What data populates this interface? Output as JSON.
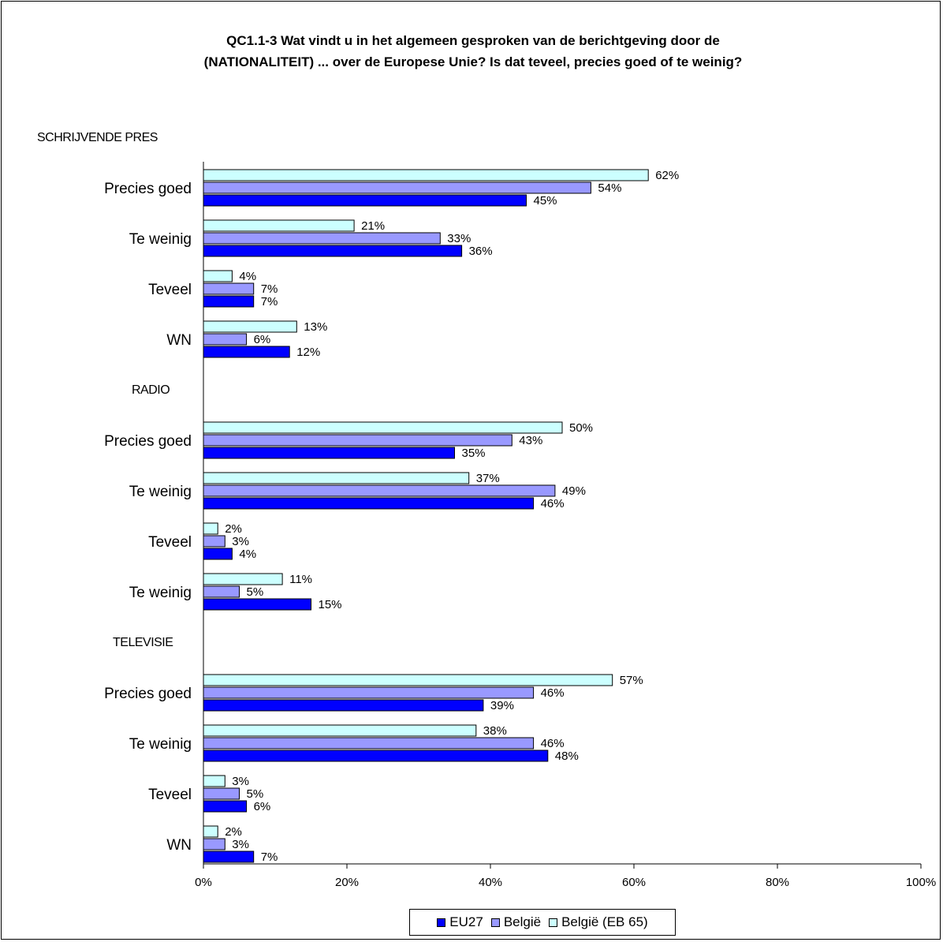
{
  "chart_data": {
    "type": "bar",
    "orientation": "horizontal",
    "title_lines": [
      "QC1.1-3 Wat vindt u in het algemeen gesproken van de berichtgeving door de",
      "(NATIONALITEIT) ... over de Europese Unie? Is dat teveel, precies goed of te weinig?"
    ],
    "xlim": [
      0,
      100
    ],
    "x_ticks": [
      0,
      20,
      40,
      60,
      80,
      100
    ],
    "x_tick_labels": [
      "0%",
      "20%",
      "40%",
      "60%",
      "80%",
      "100%"
    ],
    "legend_position": "bottom-center",
    "series": [
      {
        "name": "EU27",
        "color": "#0000ff"
      },
      {
        "name": "België",
        "color": "#9999ff"
      },
      {
        "name": "België (EB 65)",
        "color": "#ccffff"
      }
    ],
    "groups": [
      {
        "label": "SCHRIJVENDE PRES",
        "categories": [
          {
            "label": "Precies goed",
            "values": [
              45,
              54,
              62
            ]
          },
          {
            "label": "Te weinig",
            "values": [
              36,
              33,
              21
            ]
          },
          {
            "label": "Teveel",
            "values": [
              7,
              7,
              4
            ]
          },
          {
            "label": "WN",
            "values": [
              12,
              6,
              13
            ]
          }
        ]
      },
      {
        "label": "RADIO",
        "categories": [
          {
            "label": "Precies goed",
            "values": [
              35,
              43,
              50
            ]
          },
          {
            "label": "Te weinig",
            "values": [
              46,
              49,
              37
            ]
          },
          {
            "label": "Teveel",
            "values": [
              4,
              3,
              2
            ]
          },
          {
            "label": "Te weinig",
            "values": [
              15,
              5,
              11
            ]
          }
        ]
      },
      {
        "label": "TELEVISIE",
        "categories": [
          {
            "label": "Precies goed",
            "values": [
              39,
              46,
              57
            ]
          },
          {
            "label": "Te weinig",
            "values": [
              48,
              46,
              38
            ]
          },
          {
            "label": "Teveel",
            "values": [
              6,
              5,
              3
            ]
          },
          {
            "label": "WN",
            "values": [
              7,
              3,
              2
            ]
          }
        ]
      }
    ]
  }
}
